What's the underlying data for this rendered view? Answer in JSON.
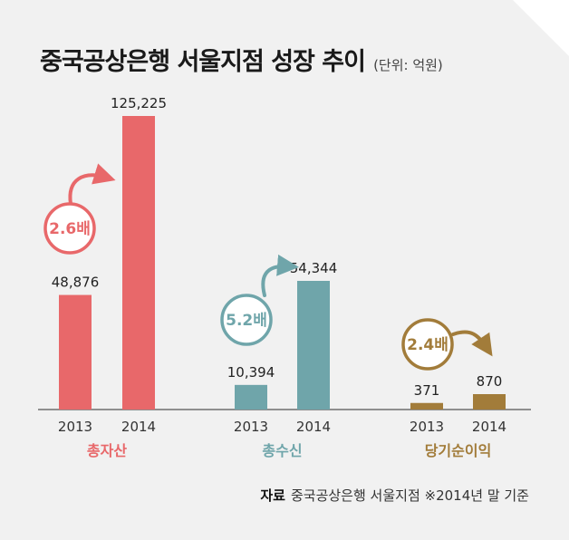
{
  "title": "중국공상은행 서울지점 성장 추이",
  "unit": "(단위: 억원)",
  "source": {
    "label": "자료",
    "text": "중국공상은행 서울지점 ※2014년 말 기준"
  },
  "colors": {
    "total_assets": "#e8686a",
    "deposits": "#6fa5aa",
    "net_income": "#a27c3a",
    "background": "#f1f1f1",
    "baseline": "#555555"
  },
  "chart_data": {
    "type": "bar",
    "title": "중국공상은행 서울지점 성장 추이",
    "unit": "(단위: 억원)",
    "scale_note": "each group drawn on its own scale",
    "groups": [
      {
        "name": "총자산",
        "color": "#e8686a",
        "years": [
          "2013",
          "2014"
        ],
        "values": [
          48876,
          125225
        ],
        "value_labels": [
          "48,876",
          "125,225"
        ],
        "ratio": "2.6배"
      },
      {
        "name": "총수신",
        "color": "#6fa5aa",
        "years": [
          "2013",
          "2014"
        ],
        "values": [
          10394,
          54344
        ],
        "value_labels": [
          "10,394",
          "54,344"
        ],
        "ratio": "5.2배"
      },
      {
        "name": "당기순이익",
        "color": "#a27c3a",
        "years": [
          "2013",
          "2014"
        ],
        "values": [
          371,
          870
        ],
        "value_labels": [
          "371",
          "870"
        ],
        "ratio": "2.4배"
      }
    ]
  }
}
